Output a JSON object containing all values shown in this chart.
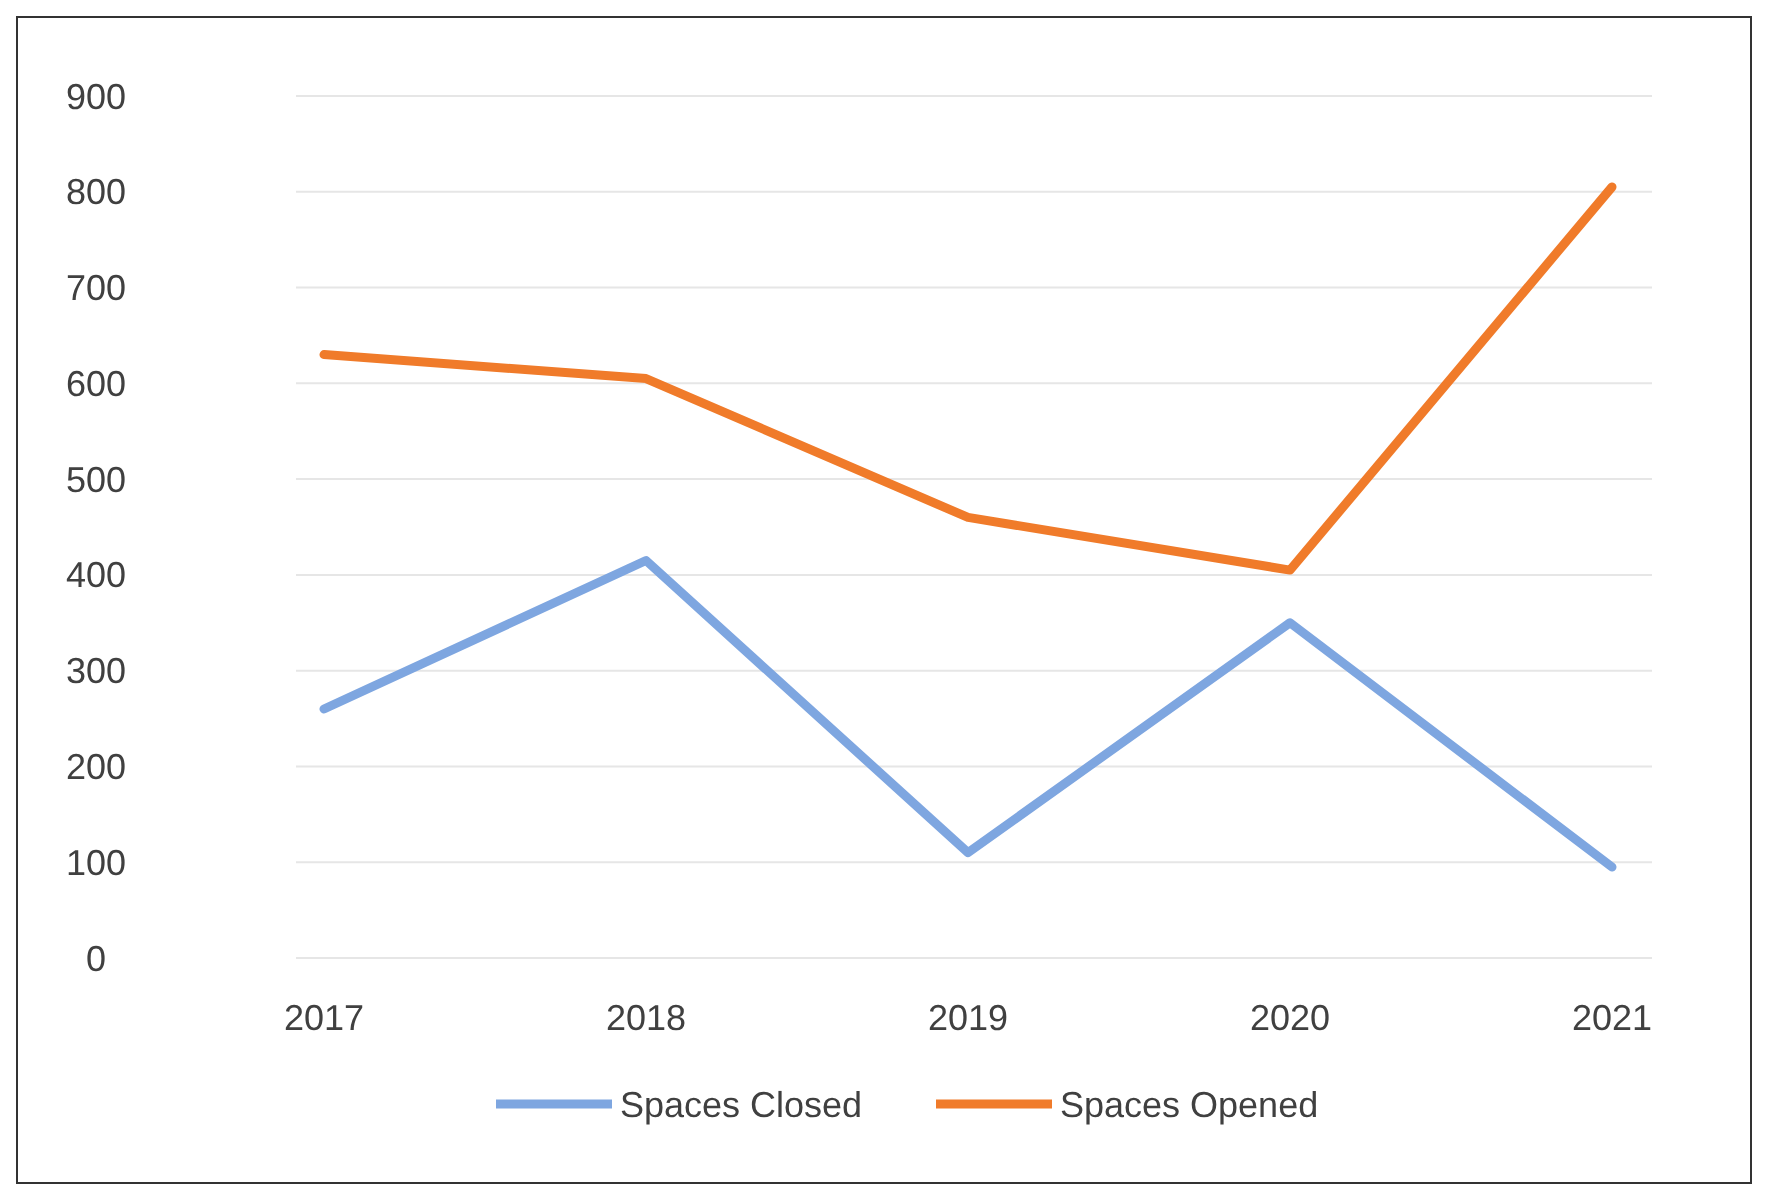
{
  "chart_data": {
    "type": "line",
    "categories": [
      "2017",
      "2018",
      "2019",
      "2020",
      "2021"
    ],
    "series": [
      {
        "name": "Spaces Closed",
        "color": "#7ea6e0",
        "values": [
          260,
          415,
          110,
          350,
          95
        ]
      },
      {
        "name": "Spaces Opened",
        "color": "#f07b2a",
        "values": [
          630,
          605,
          460,
          405,
          805
        ]
      }
    ],
    "ylim": [
      0,
      900
    ],
    "yticks": [
      0,
      100,
      200,
      300,
      400,
      500,
      600,
      700,
      800,
      900
    ],
    "grid": "y",
    "legend": "bottom",
    "marker": "none",
    "line_style": "solid"
  }
}
